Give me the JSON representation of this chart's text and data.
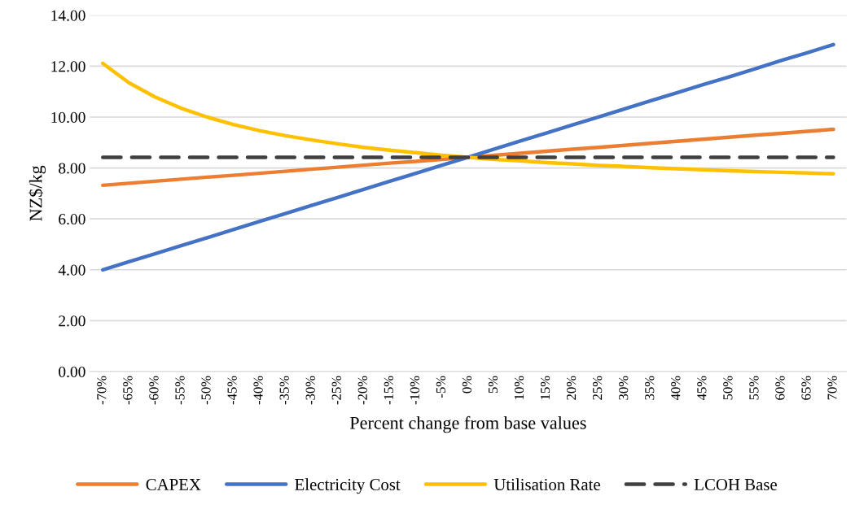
{
  "chart_data": {
    "type": "line",
    "xlabel": "Percent change from base values",
    "ylabel": "NZ$/kg",
    "categories": [
      "-70%",
      "-65%",
      "-60%",
      "-55%",
      "-50%",
      "-45%",
      "-40%",
      "-35%",
      "-30%",
      "-25%",
      "-20%",
      "-15%",
      "-10%",
      "-5%",
      "0%",
      "5%",
      "10%",
      "15%",
      "20%",
      "25%",
      "30%",
      "35%",
      "40%",
      "45%",
      "50%",
      "55%",
      "60%",
      "65%",
      "70%"
    ],
    "series": [
      {
        "name": "CAPEX",
        "color": "#ed7d31",
        "values": [
          7.32,
          7.4,
          7.48,
          7.56,
          7.64,
          7.71,
          7.79,
          7.87,
          7.95,
          8.03,
          8.11,
          8.19,
          8.26,
          8.34,
          8.42,
          8.5,
          8.58,
          8.66,
          8.74,
          8.81,
          8.89,
          8.97,
          9.05,
          9.13,
          9.21,
          9.29,
          9.36,
          9.44,
          9.52
        ]
      },
      {
        "name": "Electricity Cost",
        "color": "#4472c4",
        "values": [
          4.0,
          4.32,
          4.63,
          4.95,
          5.26,
          5.58,
          5.9,
          6.21,
          6.53,
          6.84,
          7.16,
          7.48,
          7.79,
          8.11,
          8.42,
          8.74,
          9.06,
          9.37,
          9.69,
          10.0,
          10.32,
          10.64,
          10.95,
          11.27,
          11.58,
          11.9,
          12.22,
          12.53,
          12.85
        ]
      },
      {
        "name": "Utilisation Rate",
        "color": "#ffc000",
        "values": [
          12.11,
          11.35,
          10.79,
          10.35,
          10.0,
          9.71,
          9.47,
          9.27,
          9.1,
          8.95,
          8.81,
          8.7,
          8.6,
          8.5,
          8.42,
          8.34,
          8.28,
          8.21,
          8.16,
          8.1,
          8.06,
          8.01,
          7.97,
          7.93,
          7.89,
          7.86,
          7.83,
          7.8,
          7.77
        ]
      },
      {
        "name": "LCOH Base",
        "color": "#404040",
        "line_style": "dashed",
        "values": [
          8.42,
          8.42,
          8.42,
          8.42,
          8.42,
          8.42,
          8.42,
          8.42,
          8.42,
          8.42,
          8.42,
          8.42,
          8.42,
          8.42,
          8.42,
          8.42,
          8.42,
          8.42,
          8.42,
          8.42,
          8.42,
          8.42,
          8.42,
          8.42,
          8.42,
          8.42,
          8.42,
          8.42,
          8.42
        ]
      }
    ],
    "ylim": [
      0,
      14
    ],
    "yticks": [
      {
        "value": 0,
        "label": "0.00"
      },
      {
        "value": 2,
        "label": "2.00"
      },
      {
        "value": 4,
        "label": "4.00"
      },
      {
        "value": 6,
        "label": "6.00"
      },
      {
        "value": 8,
        "label": "8.00"
      },
      {
        "value": 10,
        "label": "10.00"
      },
      {
        "value": 12,
        "label": "12.00"
      },
      {
        "value": 14,
        "label": "14.00"
      }
    ],
    "grid": "y",
    "legend": "bottom",
    "line_style": "solid",
    "marker": "none"
  }
}
